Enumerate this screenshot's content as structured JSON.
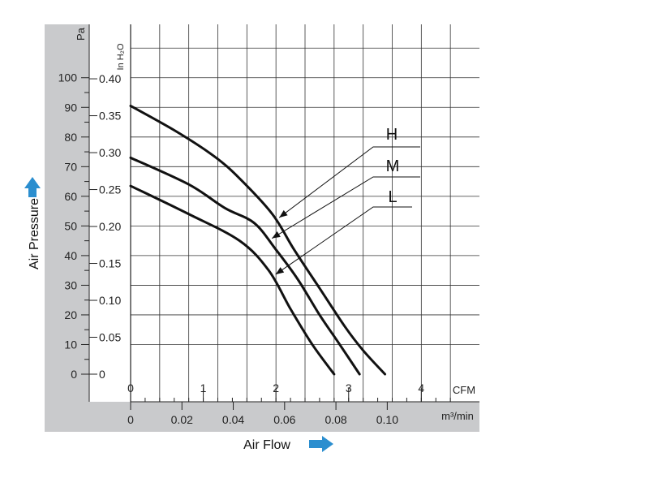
{
  "chart_data": {
    "type": "line",
    "title": "",
    "xlabel": "Air Flow",
    "ylabel": "Air Pressure",
    "x_unit_primary": "CFM",
    "x_unit_secondary": "m³/min",
    "y_unit_primary": "Pa",
    "y_unit_secondary": "In H₂O",
    "xlim": [
      0,
      4.8
    ],
    "ylim": [
      0,
      118
    ],
    "x_ticks_primary": [
      "0",
      "1",
      "2",
      "3",
      "4"
    ],
    "x_ticks_secondary": [
      "0",
      "0.02",
      "0.04",
      "0.06",
      "0.08",
      "0.10"
    ],
    "y_ticks_primary": [
      "0",
      "10",
      "20",
      "30",
      "40",
      "50",
      "60",
      "70",
      "80",
      "90",
      "100"
    ],
    "y_ticks_secondary": [
      "0",
      "0.05",
      "0.10",
      "0.15",
      "0.20",
      "0.25",
      "0.30",
      "0.35",
      "0.40"
    ],
    "grid": true,
    "series": [
      {
        "name": "H",
        "x": [
          0,
          0.62,
          1.15,
          1.5,
          1.95,
          2.25,
          2.6,
          2.95,
          3.2,
          3.5
        ],
        "y": [
          90.5,
          82,
          73.5,
          66,
          54,
          42,
          29,
          16,
          8,
          0
        ]
      },
      {
        "name": "M",
        "x": [
          0,
          0.8,
          1.3,
          1.7,
          2.0,
          2.3,
          2.6,
          2.85,
          3.15
        ],
        "y": [
          73,
          64,
          56,
          51,
          42,
          32,
          20,
          11,
          0
        ]
      },
      {
        "name": "L",
        "x": [
          0,
          0.8,
          1.5,
          1.9,
          2.2,
          2.5,
          2.8
        ],
        "y": [
          63.5,
          54,
          45,
          35,
          22,
          10,
          0
        ]
      }
    ]
  },
  "colors": {
    "axis_panel": "#c9cacc",
    "grid": "#333333",
    "curve": "#111111",
    "arrow": "#2b8ecf"
  },
  "icons": {
    "y_arrow": "arrow-up-icon",
    "x_arrow": "arrow-right-icon"
  }
}
